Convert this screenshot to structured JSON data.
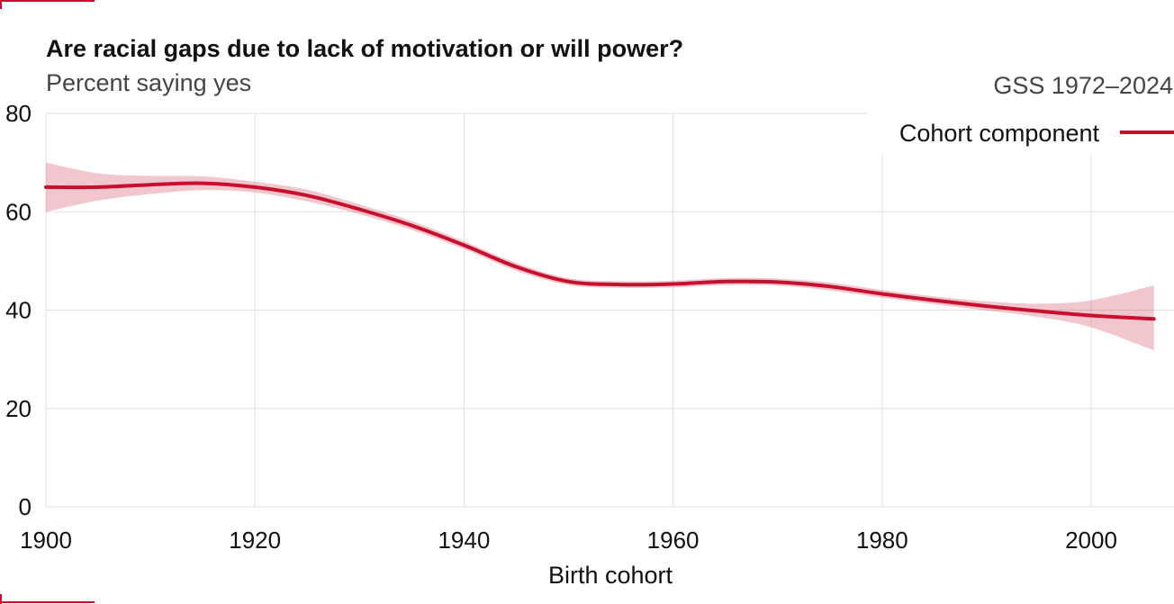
{
  "colors": {
    "accent": "#c8102e",
    "band": "#c8102e",
    "grid": "#e0e0e0"
  },
  "chart_data": {
    "type": "line",
    "title": "Are racial gaps due to lack of motivation or will power?",
    "subtitle": "Percent saying yes",
    "source": "GSS 1972–2024",
    "xlabel": "Birth cohort",
    "ylabel": "",
    "xlim": [
      1900,
      2007
    ],
    "ylim": [
      0,
      80
    ],
    "x_ticks": [
      1900,
      1920,
      1940,
      1960,
      1980,
      2000
    ],
    "y_ticks": [
      0,
      20,
      40,
      60,
      80
    ],
    "grid": true,
    "legend_position": "top-right",
    "series": [
      {
        "name": "Cohort component",
        "x": [
          1900,
          1905,
          1910,
          1915,
          1920,
          1925,
          1930,
          1935,
          1940,
          1945,
          1950,
          1955,
          1960,
          1965,
          1970,
          1975,
          1980,
          1985,
          1990,
          1995,
          2000,
          2006
        ],
        "y": [
          65,
          65,
          65.5,
          65.8,
          65,
          63.3,
          60.5,
          57.2,
          53.2,
          48.8,
          45.8,
          45.2,
          45.3,
          45.8,
          45.7,
          44.8,
          43.3,
          42,
          40.8,
          39.8,
          38.9,
          38.2
        ],
        "lower": [
          60,
          62.3,
          63.6,
          64.4,
          63.9,
          62.1,
          59.5,
          56.3,
          52.4,
          48,
          45.1,
          44.5,
          44.6,
          45.1,
          45,
          44,
          42.5,
          41.2,
          39.9,
          38.6,
          36.5,
          31.8
        ],
        "upper": [
          70,
          67.8,
          67.3,
          67.2,
          66.1,
          64.5,
          61.5,
          58.1,
          54,
          49.6,
          46.5,
          45.9,
          46,
          46.5,
          46.4,
          45.6,
          44.1,
          42.8,
          41.8,
          41.3,
          42,
          45
        ]
      }
    ]
  }
}
